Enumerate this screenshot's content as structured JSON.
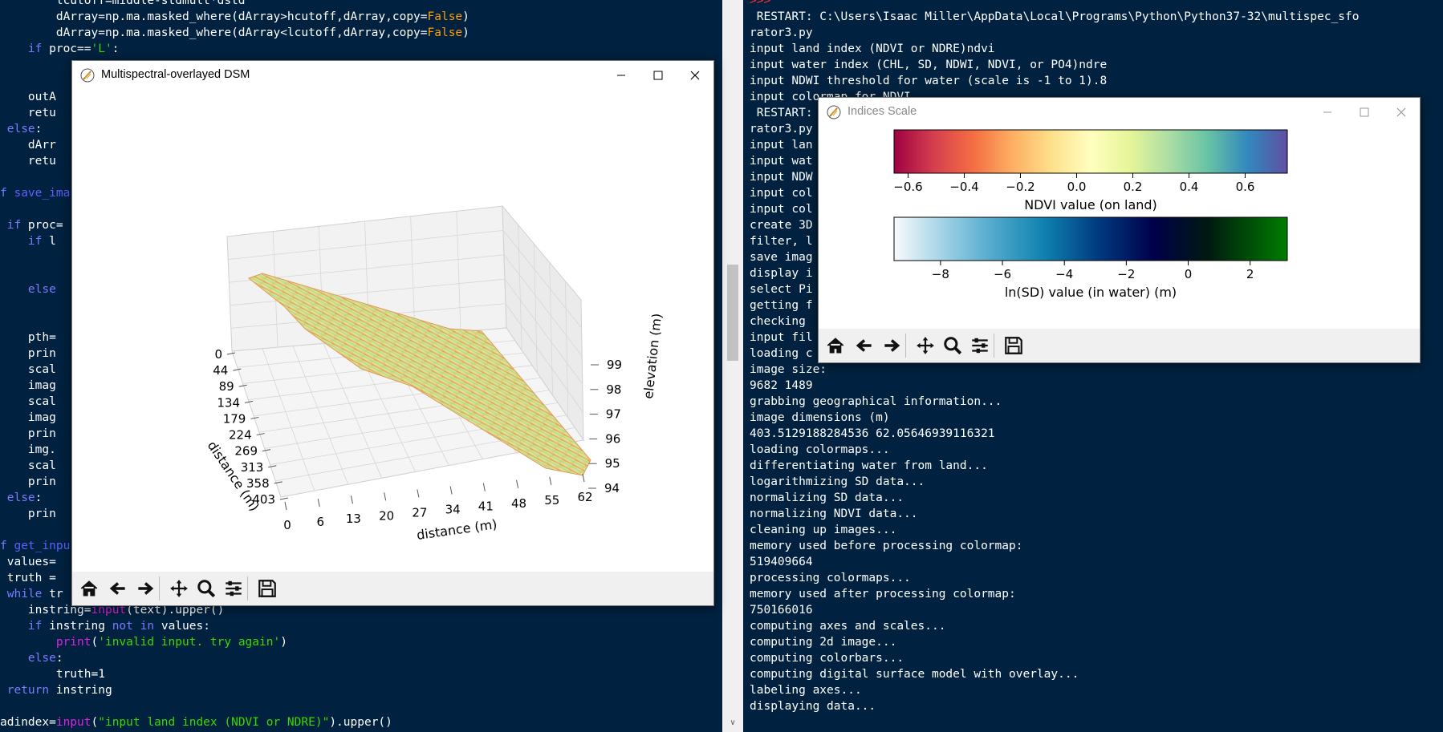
{
  "editor": {
    "lines": [
      "        lcutoff=middle-stdmult*dstd",
      "        dArray=np.ma.masked_where(dArray>hcutoff,dArray,copy=False)",
      "        dArray=np.ma.masked_where(dArray<lcutoff,dArray,copy=False)",
      "    if proc=='L':",
      "",
      "",
      "    outA",
      "    retu",
      " else:",
      "    dArr",
      "    retu",
      "",
      "f save_ima",
      "",
      " if proc=",
      "    if l",
      "",
      "",
      "    else",
      "",
      "",
      "    pth=",
      "    prin",
      "    scal",
      "    imag",
      "    scal",
      "    imag",
      "    prin",
      "    img.",
      "    scal",
      "    prin",
      " else:",
      "    prin",
      "",
      "f get_inpu",
      " values=",
      " truth = ",
      " while tr",
      "    instring=input(text).upper()",
      "    if instring not in values:",
      "        print('invalid input. try again')",
      "    else:",
      "        truth=1",
      " return instring",
      "",
      "adindex=input(\"input land index (NDVI or NDRE)\").upper()"
    ]
  },
  "shell": {
    "prompt": ">>>",
    "lines": [
      " RESTART: C:\\Users\\Isaac Miller\\AppData\\Local\\Programs\\Python\\Python37-32\\multispec_sfo",
      "rator3.py",
      "input land index (NDVI or NDRE)ndvi",
      "input water index (CHL, SD, NDWI, NDVI, or PO4)ndre",
      "input NDWI threshold for water (scale is -1 to 1).8",
      "input colormap for NDVI",
      " RESTART:                                                                             _sfo",
      "rator3.py",
      "input lan",
      "input wat",
      "input NDW",
      "input col",
      "input col",
      "create 3D",
      "filter, l                                                                              l",
      "save imag",
      "display i",
      "select Pi",
      "getting f",
      "checking ",
      "input fil",
      "loading c",
      "image size:",
      "9682 1489",
      "grabbing geographical information...",
      "image dimensions (m)",
      "403.5129188284536 62.05646939116321",
      "loading colormaps...",
      "differentiating water from land...",
      "logarithmizing SD data...",
      "normalizing SD data...",
      "normalizing NDVI data...",
      "cleaning up images...",
      "memory used before processing colormap:",
      "519409664",
      "processing colormaps...",
      "memory used after processing colormap:",
      "750166016",
      "computing axes and scales...",
      "computing 2d image...",
      "computing colorbars...",
      "computing digital surface model with overlay...",
      "labeling axes...",
      "displaying data..."
    ]
  },
  "dsm_window": {
    "title": "Multispectral-overlayed DSM",
    "plot": {
      "x_label": "distance (m)",
      "x_ticks": [
        "0",
        "6",
        "13",
        "20",
        "27",
        "34",
        "41",
        "48",
        "55",
        "62"
      ],
      "y_label": "distance (m)",
      "y_ticks": [
        "0",
        "44",
        "89",
        "134",
        "179",
        "224",
        "269",
        "313",
        "358",
        "403"
      ],
      "z_label": "elevation (m)",
      "z_ticks": [
        "94",
        "95",
        "96",
        "97",
        "98",
        "99"
      ]
    }
  },
  "scale_window": {
    "title": "Indices Scale",
    "ndvi_bar": {
      "label": "NDVI value (on land)",
      "ticks": [
        "−0.6",
        "−0.4",
        "−0.2",
        "0.0",
        "0.2",
        "0.4",
        "0.6"
      ],
      "range": [
        -0.65,
        0.75
      ]
    },
    "sd_bar": {
      "label": "ln(SD) value (in water) (m)",
      "ticks": [
        "−8",
        "−6",
        "−4",
        "−2",
        "0",
        "2"
      ],
      "range": [
        -9.5,
        3.2
      ]
    }
  },
  "toolbar_icons": [
    "home-icon",
    "back-icon",
    "forward-icon",
    "pan-icon",
    "zoom-icon",
    "configure-subplots-icon",
    "save-icon"
  ]
}
